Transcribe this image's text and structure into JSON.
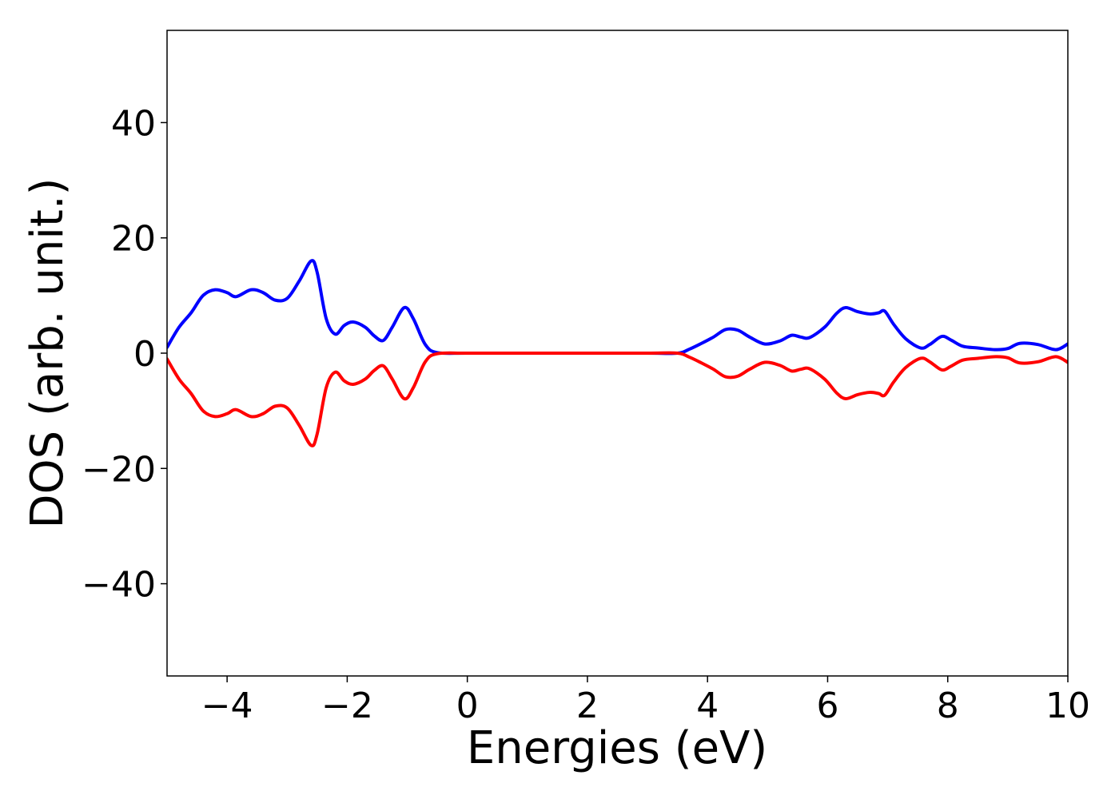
{
  "chart_data": {
    "type": "line",
    "title": "",
    "xlabel": "Energies (eV)",
    "ylabel": "DOS (arb. unit.)",
    "xlim": [
      -5,
      10
    ],
    "ylim": [
      -56,
      56
    ],
    "xticks": [
      {
        "value": -4,
        "label": "−4"
      },
      {
        "value": -2,
        "label": "−2"
      },
      {
        "value": 0,
        "label": "0"
      },
      {
        "value": 2,
        "label": "2"
      },
      {
        "value": 4,
        "label": "4"
      },
      {
        "value": 6,
        "label": "6"
      },
      {
        "value": 8,
        "label": "8"
      },
      {
        "value": 10,
        "label": "10"
      }
    ],
    "yticks": [
      {
        "value": -40,
        "label": "−40"
      },
      {
        "value": -20,
        "label": "−20"
      },
      {
        "value": 0,
        "label": "0"
      },
      {
        "value": 20,
        "label": "20"
      },
      {
        "value": 40,
        "label": "40"
      }
    ],
    "grid": false,
    "legend": "none",
    "series": [
      {
        "color": "#0000ff",
        "points": [
          [
            -5.0,
            1.0
          ],
          [
            -4.8,
            4.5
          ],
          [
            -4.6,
            7.0
          ],
          [
            -4.4,
            10.0
          ],
          [
            -4.2,
            11.0
          ],
          [
            -4.0,
            10.5
          ],
          [
            -3.85,
            9.8
          ],
          [
            -3.6,
            11.0
          ],
          [
            -3.4,
            10.5
          ],
          [
            -3.2,
            9.2
          ],
          [
            -3.0,
            9.5
          ],
          [
            -2.8,
            12.5
          ],
          [
            -2.6,
            16.0
          ],
          [
            -2.5,
            14.0
          ],
          [
            -2.35,
            6.0
          ],
          [
            -2.2,
            3.3
          ],
          [
            -2.05,
            4.8
          ],
          [
            -1.9,
            5.4
          ],
          [
            -1.7,
            4.5
          ],
          [
            -1.55,
            3.0
          ],
          [
            -1.4,
            2.2
          ],
          [
            -1.25,
            4.5
          ],
          [
            -1.05,
            7.9
          ],
          [
            -0.9,
            6.0
          ],
          [
            -0.7,
            1.5
          ],
          [
            -0.5,
            0.1
          ],
          [
            0.0,
            0.0
          ],
          [
            1.0,
            0.0
          ],
          [
            2.0,
            0.0
          ],
          [
            3.0,
            0.0
          ],
          [
            3.5,
            0.0
          ],
          [
            3.7,
            0.7
          ],
          [
            3.9,
            1.7
          ],
          [
            4.1,
            2.8
          ],
          [
            4.3,
            4.1
          ],
          [
            4.5,
            4.0
          ],
          [
            4.7,
            2.8
          ],
          [
            4.95,
            1.6
          ],
          [
            5.2,
            2.1
          ],
          [
            5.4,
            3.1
          ],
          [
            5.55,
            2.8
          ],
          [
            5.7,
            2.7
          ],
          [
            5.95,
            4.5
          ],
          [
            6.15,
            6.9
          ],
          [
            6.3,
            7.9
          ],
          [
            6.5,
            7.2
          ],
          [
            6.7,
            6.8
          ],
          [
            6.85,
            7.0
          ],
          [
            6.95,
            7.3
          ],
          [
            7.1,
            5.0
          ],
          [
            7.3,
            2.5
          ],
          [
            7.55,
            0.9
          ],
          [
            7.7,
            1.5
          ],
          [
            7.9,
            2.9
          ],
          [
            8.05,
            2.3
          ],
          [
            8.25,
            1.2
          ],
          [
            8.5,
            0.9
          ],
          [
            8.8,
            0.6
          ],
          [
            9.0,
            0.8
          ],
          [
            9.2,
            1.7
          ],
          [
            9.5,
            1.5
          ],
          [
            9.8,
            0.6
          ],
          [
            10.0,
            1.6
          ]
        ]
      },
      {
        "color": "#ff0000",
        "points": [
          [
            -5.0,
            -1.0
          ],
          [
            -4.8,
            -4.5
          ],
          [
            -4.6,
            -7.0
          ],
          [
            -4.4,
            -10.0
          ],
          [
            -4.2,
            -11.0
          ],
          [
            -4.0,
            -10.5
          ],
          [
            -3.85,
            -9.8
          ],
          [
            -3.6,
            -11.0
          ],
          [
            -3.4,
            -10.5
          ],
          [
            -3.2,
            -9.2
          ],
          [
            -3.0,
            -9.5
          ],
          [
            -2.8,
            -12.5
          ],
          [
            -2.6,
            -16.0
          ],
          [
            -2.5,
            -14.0
          ],
          [
            -2.35,
            -6.0
          ],
          [
            -2.2,
            -3.3
          ],
          [
            -2.05,
            -4.8
          ],
          [
            -1.9,
            -5.4
          ],
          [
            -1.7,
            -4.5
          ],
          [
            -1.55,
            -3.0
          ],
          [
            -1.4,
            -2.2
          ],
          [
            -1.25,
            -4.5
          ],
          [
            -1.05,
            -7.9
          ],
          [
            -0.9,
            -6.0
          ],
          [
            -0.7,
            -1.5
          ],
          [
            -0.5,
            -0.1
          ],
          [
            0.0,
            0.0
          ],
          [
            1.0,
            0.0
          ],
          [
            2.0,
            0.0
          ],
          [
            3.0,
            0.0
          ],
          [
            3.5,
            0.0
          ],
          [
            3.7,
            -0.7
          ],
          [
            3.9,
            -1.7
          ],
          [
            4.1,
            -2.8
          ],
          [
            4.3,
            -4.1
          ],
          [
            4.5,
            -4.0
          ],
          [
            4.7,
            -2.8
          ],
          [
            4.95,
            -1.6
          ],
          [
            5.2,
            -2.1
          ],
          [
            5.4,
            -3.1
          ],
          [
            5.55,
            -2.8
          ],
          [
            5.7,
            -2.7
          ],
          [
            5.95,
            -4.5
          ],
          [
            6.15,
            -6.9
          ],
          [
            6.3,
            -7.9
          ],
          [
            6.5,
            -7.2
          ],
          [
            6.7,
            -6.8
          ],
          [
            6.85,
            -7.0
          ],
          [
            6.95,
            -7.3
          ],
          [
            7.1,
            -5.0
          ],
          [
            7.3,
            -2.5
          ],
          [
            7.55,
            -0.9
          ],
          [
            7.7,
            -1.5
          ],
          [
            7.9,
            -2.9
          ],
          [
            8.05,
            -2.3
          ],
          [
            8.25,
            -1.2
          ],
          [
            8.5,
            -0.9
          ],
          [
            8.8,
            -0.6
          ],
          [
            9.0,
            -0.8
          ],
          [
            9.2,
            -1.7
          ],
          [
            9.5,
            -1.5
          ],
          [
            9.8,
            -0.6
          ],
          [
            10.0,
            -1.6
          ]
        ]
      }
    ]
  }
}
